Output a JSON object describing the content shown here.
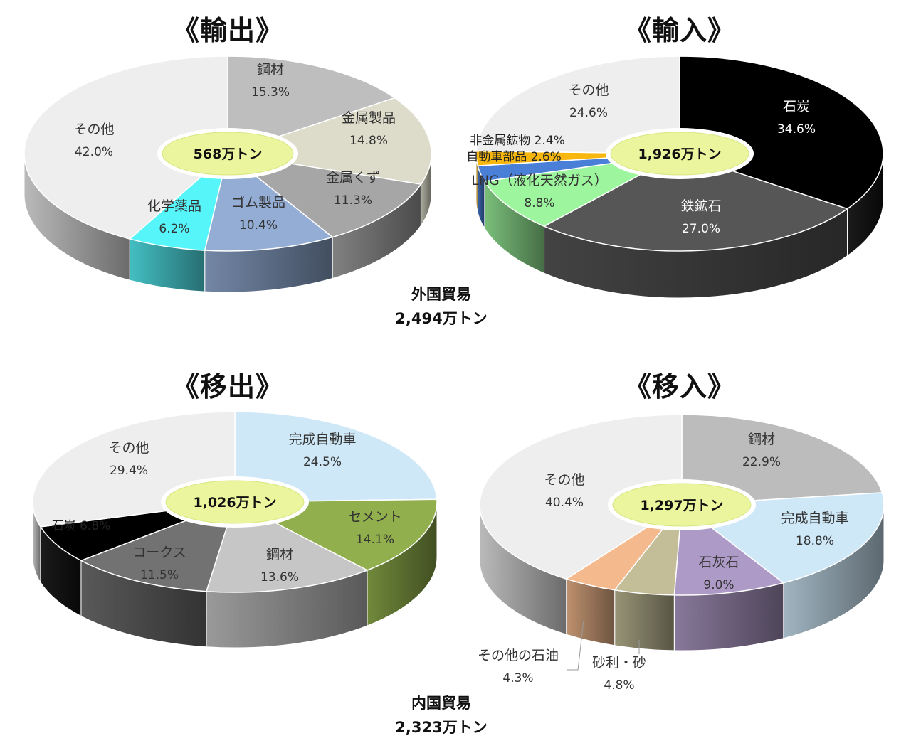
{
  "groups": [
    {
      "title": "外国貿易",
      "total": "2,494万トン"
    },
    {
      "title": "内国貿易",
      "total": "2,323万トン"
    }
  ],
  "chart_data": [
    {
      "type": "pie",
      "title": "《輸出》",
      "total": "568万トン",
      "slices": [
        {
          "label": "鋼材",
          "value": 15.3,
          "pct": "15.3%",
          "color": "#BEBEBE"
        },
        {
          "label": "金属製品",
          "value": 14.8,
          "pct": "14.8%",
          "color": "#DDDCCB"
        },
        {
          "label": "金属くず",
          "value": 11.3,
          "pct": "11.3%",
          "color": "#A6A6A6"
        },
        {
          "label": "ゴム製品",
          "value": 10.4,
          "pct": "10.4%",
          "color": "#93ADD5"
        },
        {
          "label": "化学薬品",
          "value": 6.2,
          "pct": "6.2%",
          "color": "#56F5FA"
        },
        {
          "label": "その他",
          "value": 42.0,
          "pct": "42.0%",
          "color": "#EEEEEE"
        }
      ]
    },
    {
      "type": "pie",
      "title": "《輸入》",
      "total": "1,926万トン",
      "slices": [
        {
          "label": "石炭",
          "value": 34.6,
          "pct": "34.6%",
          "color": "#000000"
        },
        {
          "label": "鉄鉱石",
          "value": 27.0,
          "pct": "27.0%",
          "color": "#565656"
        },
        {
          "label": "LNG（液化天然ガス）",
          "value": 8.8,
          "pct": "8.8%",
          "color": "#9DF59D"
        },
        {
          "label": "自動車部品",
          "value": 2.6,
          "pct": "2.6%",
          "color": "#4A7FD8"
        },
        {
          "label": "非金属鉱物",
          "value": 2.4,
          "pct": "2.4%",
          "color": "#F7B70E"
        },
        {
          "label": "その他",
          "value": 24.6,
          "pct": "24.6%",
          "color": "#EEEEEE"
        }
      ]
    },
    {
      "type": "pie",
      "title": "《移出》",
      "total": "1,026万トン",
      "slices": [
        {
          "label": "完成自動車",
          "value": 24.5,
          "pct": "24.5%",
          "color": "#CFE8F8"
        },
        {
          "label": "セメント",
          "value": 14.1,
          "pct": "14.1%",
          "color": "#91AF4C"
        },
        {
          "label": "鋼材",
          "value": 13.6,
          "pct": "13.6%",
          "color": "#C6C6C6"
        },
        {
          "label": "コークス",
          "value": 11.5,
          "pct": "11.5%",
          "color": "#727272"
        },
        {
          "label": "石炭",
          "value": 6.8,
          "pct": "6.8%",
          "color": "#000000"
        },
        {
          "label": "その他",
          "value": 29.4,
          "pct": "29.4%",
          "color": "#EEEEEE"
        }
      ]
    },
    {
      "type": "pie",
      "title": "《移入》",
      "total": "1,297万トン",
      "slices": [
        {
          "label": "鋼材",
          "value": 22.9,
          "pct": "22.9%",
          "color": "#BCBCBC"
        },
        {
          "label": "完成自動車",
          "value": 18.8,
          "pct": "18.8%",
          "color": "#CFE8F8"
        },
        {
          "label": "石灰石",
          "value": 9.0,
          "pct": "9.0%",
          "color": "#AE9AC6"
        },
        {
          "label": "砂利・砂",
          "value": 4.8,
          "pct": "4.8%",
          "color": "#C3BE98"
        },
        {
          "label": "その他の石油",
          "value": 4.3,
          "pct": "4.3%",
          "color": "#F4BA8E"
        },
        {
          "label": "その他",
          "value": 40.4,
          "pct": "40.4%",
          "color": "#EEEEEE"
        }
      ]
    }
  ]
}
